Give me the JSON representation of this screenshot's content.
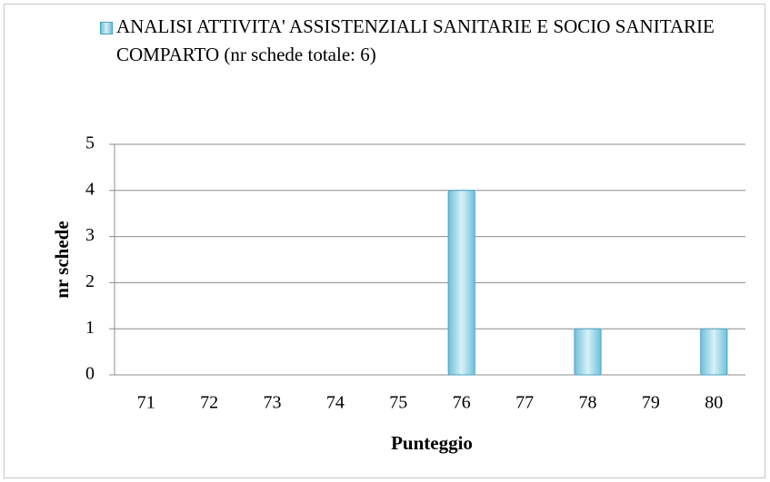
{
  "chart_data": {
    "type": "bar",
    "categories": [
      "71",
      "72",
      "73",
      "74",
      "75",
      "76",
      "77",
      "78",
      "79",
      "80"
    ],
    "series": [
      {
        "name": "ANALISI ATTIVITA' ASSISTENZIALI SANITARIE E SOCIO SANITARIE\nCOMPARTO (nr schede totale: 6)",
        "color": "#8fd0e4",
        "values": [
          0,
          0,
          0,
          0,
          0,
          4,
          0,
          1,
          0,
          1
        ]
      }
    ],
    "x_label": "Punteggio",
    "y_label": "nr schede",
    "ylim": [
      0,
      5
    ],
    "yticks": [
      0,
      1,
      2,
      3,
      4,
      5
    ],
    "grid": true,
    "legend": "top"
  }
}
